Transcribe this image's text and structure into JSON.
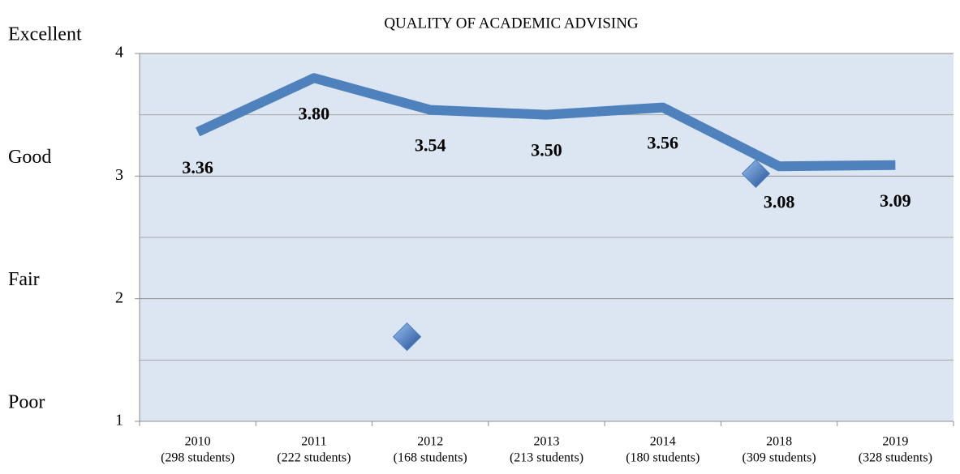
{
  "chart_data": {
    "type": "line",
    "title": "QUALITY OF ACADEMIC ADVISING",
    "categories": [
      "2010",
      "2011",
      "2012",
      "2013",
      "2014",
      "2018",
      "2019"
    ],
    "category_notes": [
      "(298 students)",
      "(222 students)",
      "(168 students)",
      "(213 students)",
      "(180 students)",
      "(309 students)",
      "(328 students)"
    ],
    "series": [
      {
        "color": "#4f81bd",
        "values": [
          3.36,
          3.8,
          3.54,
          3.5,
          3.56,
          3.08,
          3.09
        ],
        "value_labels": [
          "3.36",
          "3.80",
          "3.54",
          "3.50",
          "3.56",
          "3.08",
          "3.09"
        ]
      },
      {
        "color": "#4a7ec4",
        "marker": "diamond",
        "values": [
          null,
          null,
          1.69,
          null,
          null,
          3.02,
          null
        ]
      }
    ],
    "ylim": [
      1,
      4
    ],
    "yticks": [
      1,
      2,
      3,
      4
    ],
    "minor_grid": [
      1.5,
      2.5,
      3.5
    ],
    "rating_labels": [
      {
        "value": 4,
        "label": "Excellent"
      },
      {
        "value": 3,
        "label": "Good"
      },
      {
        "value": 2,
        "label": "Fair"
      },
      {
        "value": 1,
        "label": "Poor"
      }
    ],
    "plot_background": "#dce6f2",
    "grid": true
  }
}
